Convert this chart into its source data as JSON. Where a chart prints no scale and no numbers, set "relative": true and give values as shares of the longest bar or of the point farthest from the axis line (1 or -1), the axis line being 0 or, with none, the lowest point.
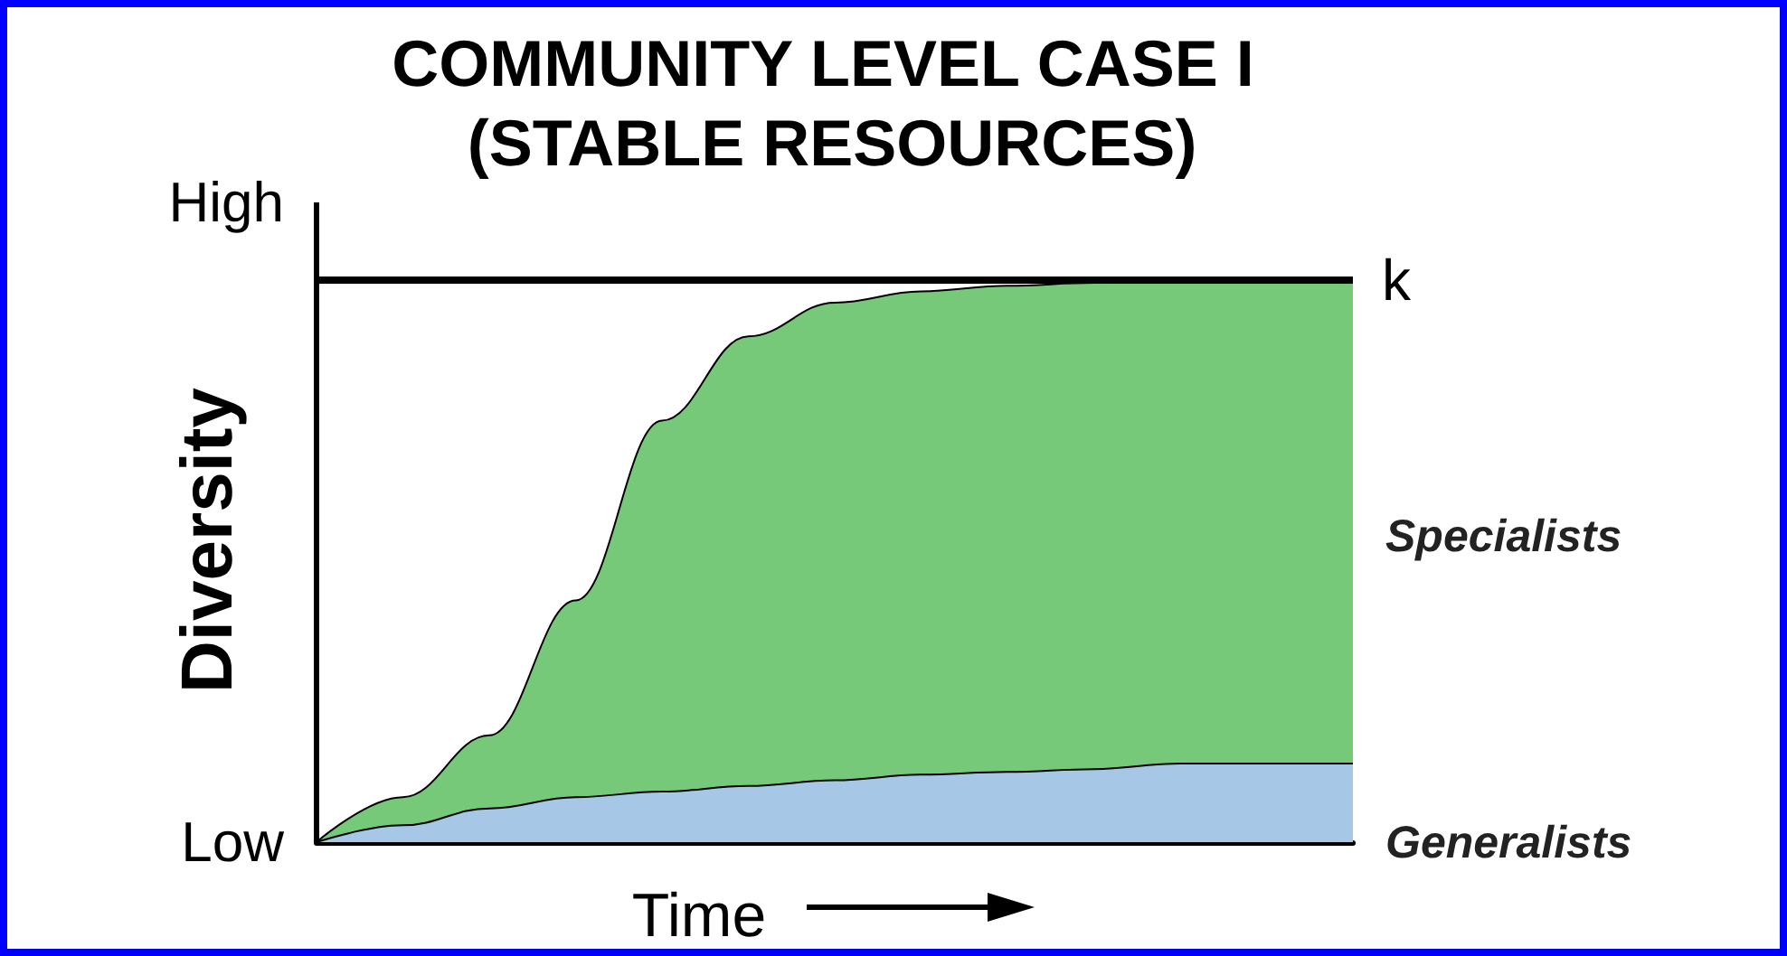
{
  "chart_data": {
    "type": "area",
    "title": "COMMUNITY LEVEL CASE I (STABLE RESOURCES)",
    "xlabel": "Time",
    "ylabel": "Diversity",
    "categories": [
      null,
      null,
      null,
      null,
      null,
      null,
      null,
      null,
      null,
      null,
      null,
      null,
      null
    ],
    "stacked": true,
    "legend": false,
    "grid": false,
    "relative": true,
    "annotations": [
      "High",
      "Low"
    ],
    "series": [
      {
        "name": "Generalists",
        "color": "#a6c8e6",
        "values": [
          0,
          0.03,
          0.06,
          0.08,
          0.09,
          0.1,
          0.11,
          0.12,
          0.125,
          0.13,
          0.14,
          0.14,
          0.14
        ]
      },
      {
        "name": "Specialists",
        "color": "#77c97a",
        "values": [
          0,
          0.05,
          0.13,
          0.35,
          0.66,
          0.8,
          0.85,
          0.86,
          0.865,
          0.865,
          0.86,
          0.86,
          0.86
        ]
      }
    ],
    "ref_lines": [
      {
        "axis": "y",
        "value": 1,
        "label": "k",
        "color": "#000000"
      }
    ]
  }
}
